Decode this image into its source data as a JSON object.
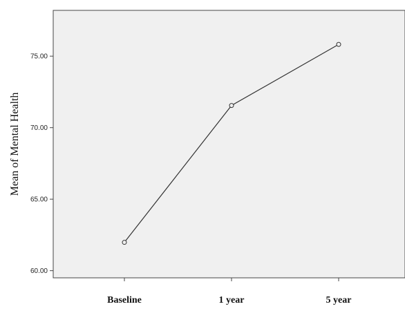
{
  "chart_data": {
    "type": "line",
    "categories": [
      "Baseline",
      "1 year",
      "5 year"
    ],
    "values": [
      61.98,
      71.55,
      75.82
    ],
    "ylabel": "Mean of Mental Health",
    "xlabel": "",
    "ylim": [
      59.5,
      78.2
    ],
    "yticks": [
      60,
      65,
      70,
      75
    ],
    "ytick_labels": [
      "60.00",
      "65.00",
      "70.00",
      "75.00"
    ],
    "grid": false,
    "marker": "open-circle",
    "colors": {
      "plot_background": "#f0f0f0",
      "line": "#333333",
      "axis": "#444444"
    }
  }
}
